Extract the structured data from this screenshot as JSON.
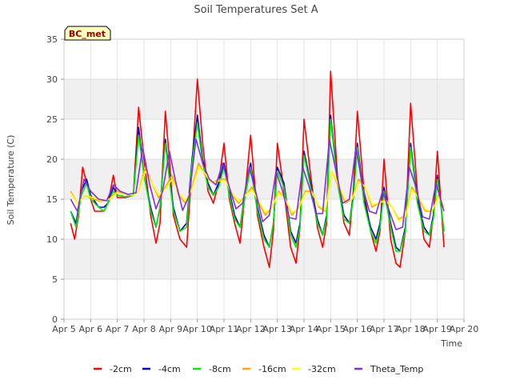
{
  "chart_data": {
    "type": "line",
    "title": "Soil Temperatures Set A",
    "xlabel": "Time",
    "ylabel": "Soil Temperature (C)",
    "badge": "BC_met",
    "xlim": [
      0,
      15
    ],
    "ylim": [
      0,
      35
    ],
    "x_ticks": [
      {
        "v": 0,
        "label": "Apr 5"
      },
      {
        "v": 1,
        "label": "Apr 6"
      },
      {
        "v": 2,
        "label": "Apr 7"
      },
      {
        "v": 3,
        "label": "Apr 8"
      },
      {
        "v": 4,
        "label": "Apr 9"
      },
      {
        "v": 5,
        "label": "Apr 10"
      },
      {
        "v": 6,
        "label": "Apr 11"
      },
      {
        "v": 7,
        "label": "Apr 12"
      },
      {
        "v": 8,
        "label": "Apr 13"
      },
      {
        "v": 9,
        "label": "Apr 14"
      },
      {
        "v": 10,
        "label": "Apr 15"
      },
      {
        "v": 11,
        "label": "Apr 16"
      },
      {
        "v": 12,
        "label": "Apr 17"
      },
      {
        "v": 13,
        "label": "Apr 18"
      },
      {
        "v": 14,
        "label": "Apr 19"
      },
      {
        "v": 15,
        "label": "Apr 20"
      }
    ],
    "y_ticks": [
      0,
      5,
      10,
      15,
      20,
      25,
      30,
      35
    ],
    "grid": true,
    "legend_position": "bottom",
    "series": [
      {
        "name": "-2cm",
        "color": "#ff0000",
        "x": [
          0.25,
          0.4,
          0.55,
          0.7,
          0.85,
          1.0,
          1.15,
          1.3,
          1.5,
          1.65,
          1.85,
          2.0,
          2.3,
          2.6,
          2.8,
          3.0,
          3.25,
          3.45,
          3.6,
          3.8,
          3.95,
          4.1,
          4.35,
          4.6,
          4.8,
          5.0,
          5.2,
          5.4,
          5.6,
          5.8,
          6.0,
          6.2,
          6.4,
          6.6,
          6.8,
          7.0,
          7.25,
          7.5,
          7.7,
          7.85,
          8.0,
          8.25,
          8.5,
          8.7,
          8.85,
          9.0,
          9.25,
          9.5,
          9.7,
          9.85,
          10.0,
          10.25,
          10.5,
          10.7,
          10.85,
          11.0,
          11.25,
          11.5,
          11.7,
          11.85,
          12.0,
          12.25,
          12.45,
          12.6,
          12.8,
          13.0,
          13.25,
          13.5,
          13.7,
          13.85,
          14.0,
          14.25
        ],
        "y": [
          12,
          10,
          13,
          19,
          17,
          15,
          13.5,
          13.5,
          13.5,
          14.5,
          18,
          15.2,
          15.2,
          15.5,
          26.5,
          20,
          13,
          9.5,
          12,
          26,
          20,
          13,
          10,
          9,
          19,
          30,
          22,
          16,
          14.5,
          17,
          22,
          15,
          12,
          9.5,
          16,
          23,
          13,
          9,
          6.5,
          11,
          22,
          16,
          9,
          7,
          11.5,
          25,
          18,
          11.5,
          9,
          12,
          31,
          18,
          12,
          10.5,
          16,
          26,
          16,
          11,
          8.5,
          11,
          20,
          10,
          7,
          6.5,
          11,
          27,
          16,
          10,
          9,
          13,
          21,
          9
        ]
      },
      {
        "name": "-4cm",
        "color": "#0000cc",
        "x": [
          0.25,
          0.45,
          0.65,
          0.85,
          1.0,
          1.3,
          1.5,
          1.65,
          1.85,
          2.0,
          2.3,
          2.6,
          2.8,
          3.0,
          3.25,
          3.45,
          3.6,
          3.8,
          3.95,
          4.1,
          4.35,
          4.6,
          4.8,
          5.0,
          5.2,
          5.4,
          5.6,
          5.8,
          6.0,
          6.2,
          6.4,
          6.6,
          6.8,
          7.0,
          7.25,
          7.5,
          7.7,
          7.85,
          8.0,
          8.25,
          8.5,
          8.7,
          8.85,
          9.0,
          9.25,
          9.5,
          9.7,
          9.85,
          10.0,
          10.25,
          10.5,
          10.7,
          10.85,
          11.0,
          11.25,
          11.5,
          11.7,
          11.85,
          12.0,
          12.25,
          12.45,
          12.6,
          12.8,
          13.0,
          13.25,
          13.5,
          13.7,
          13.85,
          14.0,
          14.25
        ],
        "y": [
          13.5,
          12,
          16,
          17.5,
          15.5,
          14,
          14,
          14.5,
          16.5,
          15.5,
          15.3,
          15.5,
          24,
          18,
          14,
          11.5,
          14,
          22.5,
          18,
          14,
          11,
          12,
          20,
          25.5,
          20,
          17,
          15.5,
          17,
          19.5,
          16,
          13,
          11.5,
          16,
          19.5,
          14,
          10.5,
          9,
          12,
          19,
          17,
          11,
          9.5,
          12,
          21,
          17,
          12.5,
          10.5,
          13,
          25.5,
          17.5,
          13,
          12,
          15.5,
          22,
          15,
          11.5,
          10,
          12,
          16.5,
          12,
          9,
          8.5,
          11.5,
          22,
          15,
          11.5,
          10.5,
          13,
          18,
          11
        ]
      },
      {
        "name": "-8cm",
        "color": "#00ee00",
        "x": [
          0.25,
          0.45,
          0.65,
          0.85,
          1.0,
          1.3,
          1.5,
          1.65,
          1.85,
          2.0,
          2.3,
          2.6,
          2.8,
          3.0,
          3.25,
          3.45,
          3.6,
          3.8,
          3.95,
          4.1,
          4.35,
          4.6,
          4.8,
          5.0,
          5.2,
          5.4,
          5.6,
          5.8,
          6.0,
          6.2,
          6.4,
          6.6,
          6.8,
          7.0,
          7.25,
          7.5,
          7.7,
          7.85,
          8.0,
          8.25,
          8.5,
          8.7,
          8.85,
          9.0,
          9.25,
          9.5,
          9.7,
          9.85,
          10.0,
          10.25,
          10.5,
          10.7,
          10.85,
          11.0,
          11.25,
          11.5,
          11.7,
          11.85,
          12.0,
          12.25,
          12.45,
          12.6,
          12.8,
          13.0,
          13.25,
          13.5,
          13.7,
          13.85,
          14.0,
          14.25
        ],
        "y": [
          13.5,
          11.5,
          15.5,
          17,
          15,
          14,
          13.5,
          14.5,
          16,
          15.5,
          15.3,
          15.5,
          23,
          18,
          13.5,
          11.5,
          14,
          22,
          17.5,
          13.5,
          11,
          11.5,
          19.5,
          24.5,
          19.5,
          16.5,
          15.5,
          16.5,
          19,
          15.5,
          12.5,
          11.5,
          15.5,
          19,
          13.5,
          10,
          9,
          12,
          18.5,
          16.5,
          10.5,
          9,
          11.5,
          20.5,
          16.5,
          12,
          10.5,
          12.5,
          25,
          17,
          12.5,
          12,
          15,
          21.5,
          14.5,
          11,
          9.5,
          11.5,
          16,
          11.5,
          8.5,
          8.5,
          11,
          21.5,
          14.5,
          11,
          10.5,
          12.5,
          17.5,
          11
        ]
      },
      {
        "name": "-16cm",
        "color": "#ffa500",
        "x": [
          0.25,
          0.5,
          0.8,
          1.1,
          1.4,
          1.7,
          2.0,
          2.3,
          2.6,
          2.8,
          3.05,
          3.3,
          3.55,
          3.8,
          4.05,
          4.3,
          4.55,
          4.8,
          5.05,
          5.3,
          5.55,
          5.8,
          6.05,
          6.3,
          6.55,
          6.8,
          7.05,
          7.3,
          7.55,
          7.8,
          8.05,
          8.3,
          8.55,
          8.8,
          9.05,
          9.3,
          9.55,
          9.8,
          10.05,
          10.3,
          10.55,
          10.8,
          11.05,
          11.3,
          11.55,
          11.8,
          12.05,
          12.3,
          12.55,
          12.8,
          13.05,
          13.3,
          13.55,
          13.8,
          14.05,
          14.25
        ],
        "y": [
          16,
          14.5,
          15.5,
          15,
          14.7,
          15,
          16,
          15.7,
          15.5,
          16,
          19,
          17,
          15.2,
          16.5,
          18,
          15.5,
          14.5,
          16.5,
          19.5,
          18,
          17,
          17.5,
          17.5,
          15.5,
          14.5,
          15.5,
          16.5,
          14.5,
          13,
          14,
          16,
          15,
          13,
          14,
          16,
          16,
          14,
          13.5,
          18.5,
          16.5,
          14.5,
          15,
          17.5,
          16.5,
          14,
          14.5,
          15,
          14,
          12.5,
          13,
          16.5,
          15,
          13.5,
          13.5,
          15.5,
          14
        ]
      },
      {
        "name": "-32cm",
        "color": "#ffff00",
        "x": [
          0.25,
          0.5,
          0.8,
          1.1,
          1.4,
          1.7,
          2.0,
          2.3,
          2.6,
          2.8,
          3.05,
          3.3,
          3.55,
          3.8,
          4.05,
          4.3,
          4.55,
          4.8,
          5.05,
          5.3,
          5.55,
          5.8,
          6.05,
          6.3,
          6.55,
          6.8,
          7.05,
          7.3,
          7.55,
          7.8,
          8.05,
          8.3,
          8.55,
          8.8,
          9.05,
          9.3,
          9.55,
          9.8,
          10.05,
          10.3,
          10.55,
          10.8,
          11.05,
          11.3,
          11.55,
          11.8,
          12.05,
          12.3,
          12.55,
          12.8,
          13.05,
          13.3,
          13.55,
          13.8,
          14.05,
          14.25
        ],
        "y": [
          15.8,
          14.5,
          15.5,
          15.2,
          14.8,
          15,
          15.8,
          15.6,
          15.5,
          16,
          18.5,
          17,
          15.5,
          16.3,
          17.5,
          15.8,
          14.8,
          16.3,
          19,
          18.2,
          17,
          17.3,
          17.3,
          15.8,
          14.7,
          15.5,
          16.2,
          14.8,
          13.3,
          14,
          15.8,
          15,
          13.3,
          13.8,
          15.8,
          15.8,
          14.2,
          13.6,
          18.5,
          16.8,
          14.8,
          15,
          17.2,
          16.5,
          14.3,
          14.5,
          14.8,
          14,
          12.3,
          12.8,
          16.2,
          15.2,
          13.7,
          13.5,
          15.3,
          14
        ]
      },
      {
        "name": "Theta_Temp",
        "color": "#8a2be2",
        "x": [
          0.25,
          0.5,
          0.75,
          1.0,
          1.3,
          1.6,
          1.85,
          2.1,
          2.4,
          2.7,
          2.95,
          3.2,
          3.45,
          3.7,
          3.95,
          4.2,
          4.45,
          4.7,
          4.95,
          5.2,
          5.45,
          5.7,
          5.95,
          6.2,
          6.45,
          6.7,
          6.95,
          7.2,
          7.45,
          7.7,
          7.95,
          8.2,
          8.45,
          8.7,
          8.95,
          9.2,
          9.45,
          9.7,
          9.95,
          10.2,
          10.45,
          10.7,
          10.95,
          11.2,
          11.45,
          11.7,
          11.95,
          12.2,
          12.45,
          12.7,
          12.95,
          13.2,
          13.45,
          13.7,
          13.95,
          14.25
        ],
        "y": [
          15,
          13.5,
          17.5,
          16,
          15,
          14.8,
          16.8,
          16,
          15.6,
          15.8,
          21.5,
          17,
          13.8,
          16,
          21,
          17,
          13.6,
          15.5,
          22.5,
          19.5,
          17.5,
          16.8,
          19.5,
          16.5,
          13.8,
          14.5,
          19,
          15.8,
          12.2,
          13,
          18.5,
          16,
          12.7,
          12.5,
          19,
          16.5,
          13.2,
          13.2,
          22.5,
          18.5,
          14.5,
          15,
          21.5,
          16.5,
          13.5,
          13.2,
          16,
          13.5,
          11.2,
          11.5,
          19,
          16.5,
          12.8,
          12.5,
          17,
          13.5
        ]
      }
    ]
  }
}
